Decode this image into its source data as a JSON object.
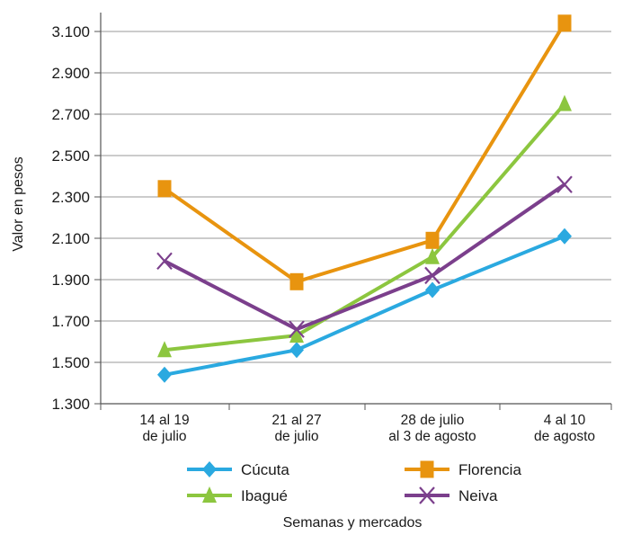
{
  "chart_data": {
    "type": "line",
    "title": "",
    "xlabel": "Semanas y mercados",
    "ylabel": "Valor en pesos",
    "ylim": [
      1300,
      3200
    ],
    "yticks": [
      1300,
      1500,
      1700,
      1900,
      2100,
      2300,
      2500,
      2700,
      2900,
      3100
    ],
    "ytick_labels": [
      "1.300",
      "1.500",
      "1.700",
      "1.900",
      "2.100",
      "2.300",
      "2.500",
      "2.700",
      "2.900",
      "3.100"
    ],
    "grid": true,
    "legend_position": "bottom",
    "categories": [
      [
        "14 al 19",
        "de julio"
      ],
      [
        "21 al 27",
        "de julio"
      ],
      [
        "28 de julio",
        "al 3 de agosto"
      ],
      [
        "4 al 10",
        "de agosto"
      ]
    ],
    "series": [
      {
        "name": "Cúcuta",
        "color": "#2aa9e0",
        "marker": "diamond",
        "values": [
          1440,
          1560,
          1850,
          2110
        ]
      },
      {
        "name": "Florencia",
        "color": "#e8940f",
        "marker": "square",
        "values": [
          2340,
          1890,
          2090,
          3140
        ]
      },
      {
        "name": "Ibagué",
        "color": "#8cc63f",
        "marker": "triangle",
        "values": [
          1560,
          1630,
          2010,
          2750
        ]
      },
      {
        "name": "Neiva",
        "color": "#7b3f8c",
        "marker": "x",
        "values": [
          1990,
          1660,
          1920,
          2360
        ]
      }
    ]
  }
}
